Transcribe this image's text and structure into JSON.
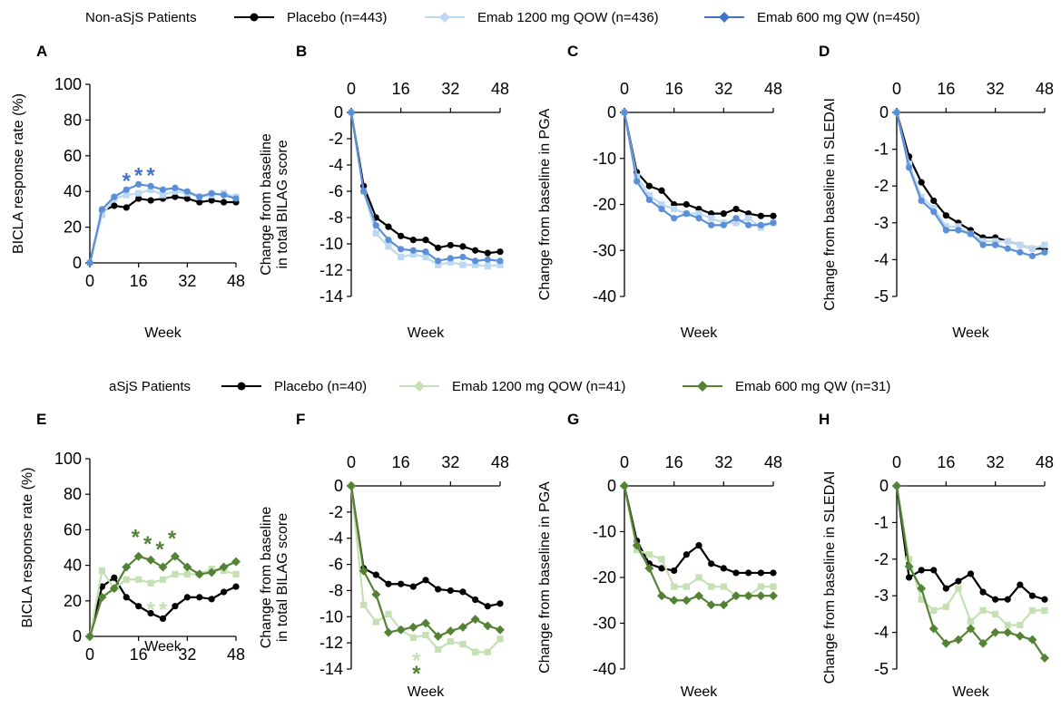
{
  "legends": [
    {
      "group_label": "Non-aSjS Patients",
      "entries": [
        {
          "label": "Placebo (n=443)",
          "color": "#000000",
          "marker": "circle"
        },
        {
          "label": "Emab 1200 mg QOW (n=436)",
          "color": "#bcd8f2",
          "marker": "diamond"
        },
        {
          "label": "Emab 600 mg QW (n=450)",
          "color": "#4472c4",
          "marker": "diamond"
        }
      ]
    },
    {
      "group_label": "aSjS Patients",
      "entries": [
        {
          "label": "Placebo (n=40)",
          "color": "#000000",
          "marker": "circle"
        },
        {
          "label": "Emab 1200 mg QOW (n=41)",
          "color": "#c5e0b4",
          "marker": "diamond"
        },
        {
          "label": "Emab 600 mg QW (n=31)",
          "color": "#548235",
          "marker": "diamond"
        }
      ]
    }
  ],
  "chart_data": [
    {
      "panel": "A",
      "type": "line",
      "xaxis_position": "bottom",
      "xlabel": "Week",
      "ylabel": "BICLA response rate (%)",
      "xlim": [
        0,
        48
      ],
      "ylim": [
        0,
        100
      ],
      "xticks": [
        "0",
        "16",
        "32",
        "48"
      ],
      "xtick_values": [
        0,
        16,
        32,
        48
      ],
      "yticks": [
        "0",
        "20",
        "40",
        "60",
        "80",
        "100"
      ],
      "ytick_values": [
        0,
        20,
        40,
        60,
        80,
        100
      ],
      "x": [
        0,
        4,
        8,
        12,
        16,
        20,
        24,
        28,
        32,
        36,
        40,
        44,
        48
      ],
      "series": [
        {
          "name": "Placebo (n=443)",
          "color": "#000000",
          "marker": "circle",
          "values": [
            0,
            29,
            32,
            31,
            36,
            35,
            36,
            37,
            36,
            34,
            35,
            34,
            34
          ]
        },
        {
          "name": "Emab 1200 mg QOW (n=436)",
          "color": "#bcd8f2",
          "marker": "square",
          "values": [
            0,
            27,
            36,
            38,
            39,
            41,
            38,
            40,
            39,
            37,
            38,
            39,
            37
          ]
        },
        {
          "name": "Emab 600 mg QW (n=450)",
          "color": "#5b8fd8",
          "marker": "circle",
          "values": [
            0,
            30,
            37,
            41,
            44,
            43,
            41,
            42,
            40,
            37,
            39,
            38,
            36
          ]
        }
      ],
      "annotations": [
        {
          "text": "*",
          "x": 12,
          "y": 47,
          "color": "#4472c4"
        },
        {
          "text": "*",
          "x": 16,
          "y": 50,
          "color": "#4472c4"
        },
        {
          "text": "*",
          "x": 20,
          "y": 50,
          "color": "#4472c4"
        }
      ]
    },
    {
      "panel": "B",
      "type": "line",
      "xaxis_position": "top",
      "xlabel": "Week",
      "ylabel": "Change from baseline in total BILAG score",
      "xlim": [
        0,
        48
      ],
      "ylim": [
        -14,
        0
      ],
      "xticks": [
        "0",
        "16",
        "32",
        "48"
      ],
      "xtick_values": [
        0,
        16,
        32,
        48
      ],
      "yticks": [
        "0",
        "-2",
        "-4",
        "-6",
        "-8",
        "-10",
        "-12",
        "-14"
      ],
      "ytick_values": [
        0,
        -2,
        -4,
        -6,
        -8,
        -10,
        -12,
        -14
      ],
      "x": [
        0,
        4,
        8,
        12,
        16,
        20,
        24,
        28,
        32,
        36,
        40,
        44,
        48
      ],
      "series": [
        {
          "name": "Placebo (n=443)",
          "color": "#000000",
          "marker": "circle",
          "values": [
            0,
            -5.6,
            -8.0,
            -8.7,
            -9.4,
            -9.7,
            -9.7,
            -10.3,
            -10.1,
            -10.2,
            -10.5,
            -10.7,
            -10.6
          ]
        },
        {
          "name": "Emab 1200 mg QOW (n=436)",
          "color": "#bcd8f2",
          "marker": "square",
          "values": [
            0,
            -6.0,
            -9.2,
            -10.2,
            -11.0,
            -10.8,
            -11.0,
            -11.6,
            -11.4,
            -11.6,
            -11.6,
            -11.7,
            -11.6
          ]
        },
        {
          "name": "Emab 600 mg QW (n=450)",
          "color": "#5b8fd8",
          "marker": "circle",
          "values": [
            0,
            -6.0,
            -8.6,
            -9.7,
            -10.4,
            -10.5,
            -10.6,
            -11.3,
            -11.1,
            -11.0,
            -11.3,
            -11.2,
            -11.3
          ]
        }
      ],
      "annotations": []
    },
    {
      "panel": "C",
      "type": "line",
      "xaxis_position": "top",
      "xlabel": "Week",
      "ylabel": "Change from baseline in PGA",
      "xlim": [
        0,
        48
      ],
      "ylim": [
        -40,
        0
      ],
      "xticks": [
        "0",
        "16",
        "32",
        "48"
      ],
      "xtick_values": [
        0,
        16,
        32,
        48
      ],
      "yticks": [
        "0",
        "-10",
        "-20",
        "-30",
        "-40"
      ],
      "ytick_values": [
        0,
        -10,
        -20,
        -30,
        -40
      ],
      "x": [
        0,
        4,
        8,
        12,
        16,
        20,
        24,
        28,
        32,
        36,
        40,
        44,
        48
      ],
      "series": [
        {
          "name": "Placebo (n=443)",
          "color": "#000000",
          "marker": "circle",
          "values": [
            0,
            -13,
            -16,
            -17,
            -20,
            -20,
            -21,
            -22,
            -22,
            -21,
            -22,
            -22.5,
            -22.5
          ]
        },
        {
          "name": "Emab 1200 mg QOW (n=436)",
          "color": "#bcd8f2",
          "marker": "square",
          "values": [
            0,
            -14,
            -18,
            -20,
            -21,
            -22,
            -22,
            -23,
            -24,
            -24,
            -23,
            -25,
            -24
          ]
        },
        {
          "name": "Emab 600 mg QW (n=450)",
          "color": "#5b8fd8",
          "marker": "circle",
          "values": [
            0,
            -15,
            -19,
            -21,
            -23,
            -22,
            -23,
            -24.5,
            -24.5,
            -23,
            -24.5,
            -24.5,
            -24
          ]
        }
      ],
      "annotations": []
    },
    {
      "panel": "D",
      "type": "line",
      "xaxis_position": "top",
      "xlabel": "Week",
      "ylabel": "Change from baseline in SLEDAI",
      "xlim": [
        0,
        48
      ],
      "ylim": [
        -5,
        0
      ],
      "xticks": [
        "0",
        "16",
        "32",
        "48"
      ],
      "xtick_values": [
        0,
        16,
        32,
        48
      ],
      "yticks": [
        "0",
        "-1",
        "-2",
        "-3",
        "-4",
        "-5"
      ],
      "ytick_values": [
        0,
        -1,
        -2,
        -3,
        -4,
        -5
      ],
      "x": [
        0,
        4,
        8,
        12,
        16,
        20,
        24,
        28,
        32,
        36,
        40,
        44,
        48
      ],
      "series": [
        {
          "name": "Placebo (n=443)",
          "color": "#000000",
          "marker": "circle",
          "values": [
            0,
            -1.2,
            -1.9,
            -2.4,
            -2.8,
            -3.0,
            -3.2,
            -3.4,
            -3.4,
            -3.5,
            -3.6,
            -3.7,
            -3.7
          ]
        },
        {
          "name": "Emab 1200 mg QOW (n=436)",
          "color": "#bcd8f2",
          "marker": "square",
          "values": [
            0,
            -1.4,
            -2.3,
            -2.6,
            -3.1,
            -3.1,
            -3.3,
            -3.5,
            -3.5,
            -3.5,
            -3.6,
            -3.7,
            -3.6
          ]
        },
        {
          "name": "Emab 600 mg QW (n=450)",
          "color": "#5b8fd8",
          "marker": "circle",
          "values": [
            0,
            -1.5,
            -2.4,
            -2.7,
            -3.2,
            -3.2,
            -3.3,
            -3.6,
            -3.6,
            -3.7,
            -3.8,
            -3.9,
            -3.8
          ]
        }
      ],
      "annotations": []
    },
    {
      "panel": "E",
      "type": "line",
      "xaxis_position": "bottom",
      "xlabel": "Week",
      "ylabel": "BICLA response rate (%)",
      "xlim": [
        0,
        48
      ],
      "ylim": [
        0,
        100
      ],
      "xticks": [
        "0",
        "16",
        "32",
        "48"
      ],
      "xtick_values": [
        0,
        16,
        32,
        48
      ],
      "yticks": [
        "0",
        "20",
        "40",
        "60",
        "80",
        "100"
      ],
      "ytick_values": [
        0,
        20,
        40,
        60,
        80,
        100
      ],
      "x": [
        0,
        4,
        8,
        12,
        16,
        20,
        24,
        28,
        32,
        36,
        40,
        44,
        48
      ],
      "series": [
        {
          "name": "Placebo (n=40)",
          "color": "#000000",
          "marker": "circle",
          "values": [
            0,
            28,
            33,
            22,
            17,
            13,
            10,
            17,
            22,
            22,
            21,
            25,
            28
          ]
        },
        {
          "name": "Emab 1200 mg QOW (n=41)",
          "color": "#c5e0b4",
          "marker": "square",
          "values": [
            0,
            37,
            27,
            32,
            32,
            30,
            32,
            35,
            35,
            35,
            38,
            37,
            35
          ]
        },
        {
          "name": "Emab 600 mg QW (n=31)",
          "color": "#548235",
          "marker": "diamond",
          "values": [
            0,
            22,
            27,
            39,
            45,
            43,
            39,
            45,
            39,
            35,
            36,
            39,
            42
          ]
        }
      ],
      "annotations": [
        {
          "text": "*",
          "x": 15,
          "y": 57,
          "color": "#548235"
        },
        {
          "text": "*",
          "x": 19,
          "y": 53,
          "color": "#548235"
        },
        {
          "text": "*",
          "x": 23,
          "y": 50,
          "color": "#548235"
        },
        {
          "text": "*",
          "x": 27,
          "y": 56,
          "color": "#548235"
        },
        {
          "text": "*",
          "x": 20,
          "y": 16,
          "color": "#c5e0b4"
        },
        {
          "text": "*",
          "x": 24,
          "y": 16,
          "color": "#c5e0b4"
        }
      ]
    },
    {
      "panel": "F",
      "type": "line",
      "xaxis_position": "top",
      "xlabel": "Week",
      "ylabel": "Change from baseline in total BILAG score",
      "xlim": [
        0,
        48
      ],
      "ylim": [
        -14,
        0
      ],
      "xticks": [
        "0",
        "16",
        "32",
        "48"
      ],
      "xtick_values": [
        0,
        16,
        32,
        48
      ],
      "yticks": [
        "0",
        "-2",
        "-4",
        "-6",
        "-8",
        "-10",
        "-12",
        "-14"
      ],
      "ytick_values": [
        0,
        -2,
        -4,
        -6,
        -8,
        -10,
        -12,
        -14
      ],
      "x": [
        0,
        4,
        8,
        12,
        16,
        20,
        24,
        28,
        32,
        36,
        40,
        44,
        48
      ],
      "series": [
        {
          "name": "Placebo (n=40)",
          "color": "#000000",
          "marker": "circle",
          "values": [
            0,
            -6.3,
            -6.8,
            -7.5,
            -7.5,
            -7.7,
            -7.2,
            -7.9,
            -8.0,
            -8.1,
            -8.7,
            -9.2,
            -9.0
          ]
        },
        {
          "name": "Emab 1200 mg QOW (n=41)",
          "color": "#c5e0b4",
          "marker": "square",
          "values": [
            0,
            -9.1,
            -10.4,
            -9.8,
            -11.0,
            -11.6,
            -11.4,
            -12.5,
            -11.9,
            -12.1,
            -12.7,
            -12.7,
            -11.7
          ]
        },
        {
          "name": "Emab 600 mg QW (n=31)",
          "color": "#548235",
          "marker": "diamond",
          "values": [
            0,
            -6.5,
            -8.3,
            -11.2,
            -11.0,
            -10.8,
            -10.5,
            -11.5,
            -11.1,
            -10.8,
            -10.2,
            -10.7,
            -11.0
          ]
        }
      ],
      "annotations": [
        {
          "text": "*",
          "x": 21,
          "y": -13.2,
          "color": "#c5e0b4"
        },
        {
          "text": "*",
          "x": 21,
          "y": -14.2,
          "color": "#548235"
        }
      ]
    },
    {
      "panel": "G",
      "type": "line",
      "xaxis_position": "top",
      "xlabel": "Week",
      "ylabel": "Change from baseline in PGA",
      "xlim": [
        0,
        48
      ],
      "ylim": [
        -40,
        0
      ],
      "xticks": [
        "0",
        "16",
        "32",
        "48"
      ],
      "xtick_values": [
        0,
        16,
        32,
        48
      ],
      "yticks": [
        "0",
        "-10",
        "-20",
        "-30",
        "-40"
      ],
      "ytick_values": [
        0,
        -10,
        -20,
        -30,
        -40
      ],
      "x": [
        0,
        4,
        8,
        12,
        16,
        20,
        24,
        28,
        32,
        36,
        40,
        44,
        48
      ],
      "series": [
        {
          "name": "Placebo (n=40)",
          "color": "#000000",
          "marker": "circle",
          "values": [
            0,
            -12,
            -17,
            -18,
            -18.5,
            -15,
            -13,
            -17,
            -18,
            -19,
            -19,
            -19,
            -19
          ]
        },
        {
          "name": "Emab 1200 mg QOW (n=41)",
          "color": "#c5e0b4",
          "marker": "square",
          "values": [
            0,
            -14,
            -15,
            -16,
            -22,
            -22,
            -20,
            -22,
            -22,
            -24,
            -24,
            -22,
            -22
          ]
        },
        {
          "name": "Emab 600 mg QW (n=31)",
          "color": "#548235",
          "marker": "diamond",
          "values": [
            0,
            -13,
            -18,
            -24,
            -25,
            -25,
            -24,
            -26,
            -26,
            -24,
            -24,
            -24,
            -24
          ]
        }
      ],
      "annotations": []
    },
    {
      "panel": "H",
      "type": "line",
      "xaxis_position": "top",
      "xlabel": "Week",
      "ylabel": "Change from baseline in SLEDAI",
      "xlim": [
        0,
        48
      ],
      "ylim": [
        -5,
        0
      ],
      "xticks": [
        "0",
        "16",
        "32",
        "48"
      ],
      "xtick_values": [
        0,
        16,
        32,
        48
      ],
      "yticks": [
        "0",
        "-1",
        "-2",
        "-3",
        "-4",
        "-5"
      ],
      "ytick_values": [
        0,
        -1,
        -2,
        -3,
        -4,
        -5
      ],
      "x": [
        0,
        4,
        8,
        12,
        16,
        20,
        24,
        28,
        32,
        36,
        40,
        44,
        48
      ],
      "series": [
        {
          "name": "Placebo (n=40)",
          "color": "#000000",
          "marker": "circle",
          "values": [
            0,
            -2.5,
            -2.3,
            -2.3,
            -2.8,
            -2.6,
            -2.4,
            -2.9,
            -3.1,
            -3.1,
            -2.7,
            -3.0,
            -3.1
          ]
        },
        {
          "name": "Emab 1200 mg QOW (n=41)",
          "color": "#c5e0b4",
          "marker": "square",
          "values": [
            0,
            -2.0,
            -3.1,
            -3.4,
            -3.3,
            -2.8,
            -3.7,
            -3.4,
            -3.5,
            -3.8,
            -3.8,
            -3.4,
            -3.4
          ]
        },
        {
          "name": "Emab 600 mg QW (n=31)",
          "color": "#548235",
          "marker": "diamond",
          "values": [
            0,
            -2.2,
            -2.8,
            -3.9,
            -4.3,
            -4.2,
            -3.9,
            -4.3,
            -4.0,
            -4.0,
            -4.1,
            -4.2,
            -4.7
          ]
        }
      ],
      "annotations": []
    }
  ]
}
